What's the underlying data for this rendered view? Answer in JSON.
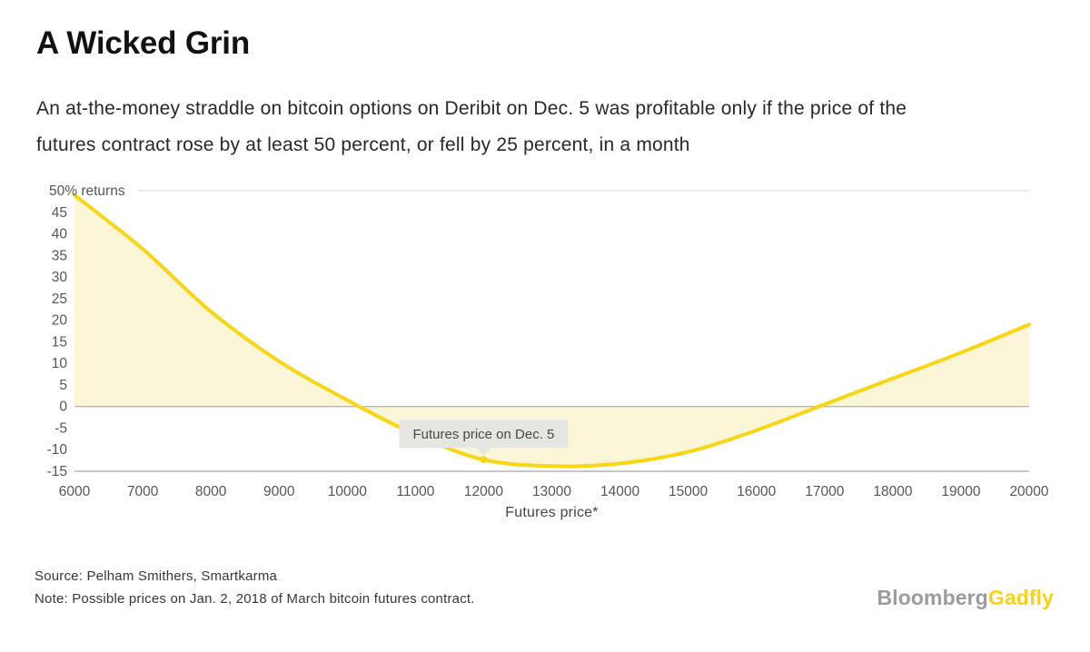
{
  "header": {
    "title": "A Wicked Grin",
    "subtitle_lines": [
      "An at-the-money straddle on bitcoin options on Deribit on Dec. 5 was profitable only if the price of the",
      "futures contract rose by at least 50 percent, or fell by 25 percent, in a month"
    ]
  },
  "chart_data": {
    "type": "line",
    "title": "A Wicked Grin",
    "x": [
      6000,
      7000,
      8000,
      9000,
      10000,
      11000,
      12000,
      13000,
      14000,
      15000,
      16000,
      17000,
      18000,
      19000,
      20000
    ],
    "values": [
      49,
      36.5,
      22,
      10.5,
      1.5,
      -6.5,
      -12.3,
      -13.8,
      -13.2,
      -10.5,
      -5.5,
      0.5,
      6.5,
      12.5,
      19
    ],
    "xlabel": "Futures price*",
    "xlim": [
      6000,
      20000
    ],
    "ylim": [
      -15,
      50
    ],
    "x_ticks": [
      6000,
      7000,
      8000,
      9000,
      10000,
      11000,
      12000,
      13000,
      14000,
      15000,
      16000,
      17000,
      18000,
      19000,
      20000
    ],
    "y_ticks": [
      50,
      45,
      40,
      35,
      30,
      25,
      20,
      15,
      10,
      5,
      0,
      -5,
      -10,
      -15
    ],
    "y_top_tick_label": "50% returns",
    "baseline": 0,
    "grid": false,
    "legend": "none",
    "annotation": {
      "label": "Futures price on Dec. 5",
      "x": 12000,
      "y": -12.3
    },
    "colors": {
      "line": "#FAD513",
      "fill": "#FCF6D8",
      "tooltip_bg": "#E5E5E1",
      "tooltip_text": "#474747",
      "axis_text": "#565656",
      "top_grid": "#D9D9D9",
      "zero_line": "#9F9F9F",
      "axis_line": "#8C8C8C"
    }
  },
  "footer": {
    "source": "Source: Pelham Smithers, Smartkarma",
    "note": "Note: Possible prices on Jan. 2, 2018 of March bitcoin futures contract.",
    "brand_gray": "Bloomberg",
    "brand_yellow": "Gadfly",
    "brand_colors": {
      "bloomberg": "#9C9C9C",
      "gadfly": "#FBD116"
    }
  }
}
